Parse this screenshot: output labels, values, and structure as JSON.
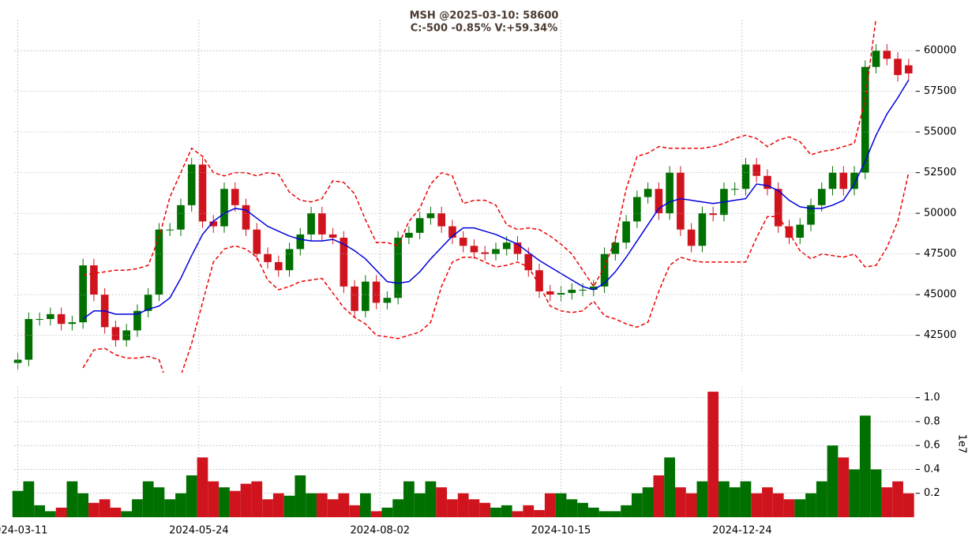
{
  "chart_data": {
    "type": "candlestick",
    "title": "MSH @2025-03-10: 58600",
    "subtitle": "C:-500 -0.85% V:+59.34%",
    "x": [
      0,
      3,
      6,
      9,
      12,
      15,
      18,
      21,
      24,
      27,
      30,
      33,
      36,
      39,
      42,
      45,
      48,
      51,
      54,
      57,
      60,
      63,
      66,
      69,
      72,
      75,
      78,
      81,
      84,
      87,
      90,
      93,
      96,
      99,
      102,
      105,
      108,
      111,
      114,
      117,
      120,
      123,
      126,
      129,
      132,
      135,
      138,
      141,
      144,
      147,
      150,
      153,
      156,
      159,
      162,
      165,
      168,
      171,
      174,
      177,
      180,
      183,
      186,
      189,
      192,
      195,
      198,
      201,
      204,
      207,
      210,
      213,
      216,
      219,
      222,
      225,
      228,
      231,
      234,
      237,
      240,
      243,
      246
    ],
    "open": [
      40800,
      41000,
      43500,
      43500,
      43800,
      43200,
      43300,
      46800,
      45000,
      43000,
      42200,
      42800,
      44000,
      45000,
      49000,
      49000,
      50500,
      53000,
      49500,
      49200,
      51500,
      50500,
      49000,
      47500,
      47000,
      46500,
      47800,
      48700,
      50000,
      48700,
      48500,
      45500,
      44000,
      45800,
      44500,
      44800,
      48500,
      48800,
      49700,
      50000,
      49200,
      48500,
      48000,
      47600,
      47500,
      47800,
      48200,
      47500,
      46500,
      45200,
      45000,
      45100,
      45300,
      45300,
      45500,
      47500,
      48200,
      49500,
      51000,
      51500,
      50000,
      52500,
      49000,
      48000,
      50000,
      49900,
      51500,
      51500,
      53000,
      52300,
      51500,
      49200,
      48500,
      49300,
      50500,
      51500,
      52500,
      51500,
      52500,
      59000,
      60000,
      59500,
      59100
    ],
    "high": [
      41400,
      43900,
      43900,
      44200,
      44200,
      43700,
      47200,
      47200,
      45400,
      43400,
      43200,
      44400,
      45400,
      49400,
      49400,
      50900,
      53400,
      53400,
      49900,
      51900,
      51900,
      50900,
      49400,
      47900,
      47400,
      48200,
      49100,
      50400,
      50400,
      49100,
      48900,
      45900,
      46200,
      46200,
      45200,
      48900,
      49200,
      50100,
      50400,
      50400,
      49600,
      48900,
      48400,
      48000,
      48200,
      48600,
      48600,
      47900,
      46900,
      45600,
      45500,
      45700,
      45700,
      45900,
      47900,
      48600,
      49900,
      51400,
      51900,
      51900,
      52900,
      52900,
      49400,
      50400,
      50400,
      51900,
      51900,
      53400,
      53400,
      52700,
      51900,
      49600,
      49700,
      50900,
      51900,
      52900,
      52900,
      52900,
      59400,
      60400,
      60400,
      59900,
      59500
    ],
    "low": [
      40400,
      40600,
      43100,
      43100,
      42800,
      42800,
      42900,
      44600,
      42600,
      41800,
      41800,
      42400,
      43600,
      44600,
      48600,
      48600,
      50100,
      49100,
      48800,
      48800,
      50100,
      48600,
      47100,
      46600,
      46100,
      46100,
      47400,
      48300,
      48300,
      48100,
      45100,
      43600,
      43600,
      44100,
      44100,
      44400,
      48100,
      48400,
      49300,
      48800,
      48100,
      47600,
      47200,
      47100,
      47100,
      47400,
      47100,
      46100,
      44800,
      44600,
      44600,
      44700,
      44900,
      44900,
      45100,
      47100,
      47800,
      49100,
      50600,
      49600,
      49600,
      48600,
      47600,
      47600,
      49500,
      49500,
      51100,
      51100,
      51900,
      51100,
      48800,
      48100,
      48100,
      48900,
      50100,
      51100,
      51100,
      51100,
      52100,
      58600,
      59100,
      58100,
      58200
    ],
    "close": [
      41000,
      43500,
      43500,
      43800,
      43200,
      43300,
      46800,
      45000,
      43000,
      42200,
      42800,
      44000,
      45000,
      49000,
      49000,
      50500,
      53000,
      49500,
      49200,
      51500,
      50500,
      49000,
      47500,
      47000,
      46500,
      47800,
      48700,
      50000,
      48700,
      48500,
      45500,
      44000,
      45800,
      44500,
      44800,
      48500,
      48800,
      49700,
      50000,
      49200,
      48500,
      48000,
      47600,
      47500,
      47800,
      48200,
      47500,
      46500,
      45200,
      45000,
      45100,
      45300,
      45300,
      45500,
      47500,
      48200,
      49500,
      51000,
      51500,
      50000,
      52500,
      49000,
      48000,
      50000,
      49900,
      51500,
      51500,
      53000,
      52300,
      51500,
      49200,
      48500,
      49300,
      50500,
      51500,
      52500,
      51500,
      52500,
      59000,
      60000,
      59500,
      58500,
      58600
    ],
    "up_color": "#007000",
    "down_color": "#d0141e",
    "ma": {
      "color": "#0000dd",
      "values": [
        null,
        null,
        null,
        null,
        null,
        null,
        43500,
        44000,
        44000,
        43800,
        43800,
        43800,
        44100,
        44300,
        44800,
        46000,
        47400,
        48700,
        49500,
        50000,
        50300,
        50200,
        49700,
        49200,
        48900,
        48600,
        48400,
        48300,
        48300,
        48400,
        48100,
        47700,
        47200,
        46500,
        45800,
        45700,
        45800,
        46400,
        47200,
        47900,
        48600,
        49100,
        49100,
        48900,
        48700,
        48400,
        48100,
        47600,
        47100,
        46700,
        46300,
        45900,
        45500,
        45300,
        45700,
        46400,
        47300,
        48300,
        49300,
        50300,
        50700,
        50900,
        50800,
        50700,
        50600,
        50700,
        50800,
        50900,
        51800,
        51700,
        51400,
        50800,
        50400,
        50300,
        50300,
        50500,
        50800,
        51800,
        53200,
        54800,
        56100,
        57100,
        58200
      ]
    },
    "upper": {
      "color": "#ee0000",
      "values": [
        null,
        null,
        null,
        null,
        null,
        null,
        46200,
        46300,
        46400,
        46500,
        46500,
        46600,
        46800,
        48500,
        51000,
        52500,
        54000,
        53500,
        52500,
        52300,
        52500,
        52500,
        52300,
        52500,
        52400,
        51300,
        50800,
        50700,
        50900,
        52000,
        51900,
        51200,
        49600,
        48200,
        48200,
        48000,
        49500,
        50300,
        51800,
        52500,
        52300,
        50600,
        50800,
        50800,
        50500,
        49300,
        49000,
        49100,
        49000,
        48600,
        48100,
        47500,
        46500,
        45500,
        46700,
        48400,
        51500,
        53500,
        53700,
        54100,
        54000,
        54000,
        54000,
        54000,
        54100,
        54300,
        54600,
        54800,
        54600,
        54100,
        54500,
        54700,
        54400,
        53600,
        53800,
        53900,
        54100,
        54300,
        57000,
        62000,
        63000,
        63500,
        63000
      ]
    },
    "lower": {
      "color": "#ee0000",
      "values": [
        null,
        null,
        null,
        null,
        null,
        null,
        40500,
        41600,
        41700,
        41300,
        41100,
        41100,
        41200,
        41000,
        39000,
        40000,
        42000,
        44500,
        47000,
        47800,
        48000,
        47800,
        47300,
        45900,
        45300,
        45500,
        45800,
        45900,
        46000,
        45100,
        44200,
        43600,
        43200,
        42500,
        42400,
        42300,
        42500,
        42700,
        43300,
        45500,
        47000,
        47300,
        47300,
        47000,
        46700,
        46800,
        47000,
        46700,
        45600,
        44300,
        44000,
        43900,
        44000,
        44600,
        43700,
        43500,
        43200,
        43000,
        43300,
        45200,
        46800,
        47300,
        47100,
        47000,
        47000,
        47000,
        47000,
        47000,
        48500,
        49800,
        49800,
        48800,
        47700,
        47200,
        47500,
        47400,
        47300,
        47500,
        46700,
        46800,
        47900,
        49500,
        52500
      ]
    },
    "xlim": [
      -1,
      248
    ],
    "xticks": [
      {
        "value": 0,
        "label": "2024-03-11"
      },
      {
        "value": 50,
        "label": "2024-05-24"
      },
      {
        "value": 100,
        "label": "2024-08-02"
      },
      {
        "value": 150,
        "label": "2024-10-15"
      },
      {
        "value": 200,
        "label": "2024-12-24"
      }
    ],
    "ylim": [
      40200,
      61900
    ],
    "yticks": [
      42500,
      45000,
      47500,
      50000,
      52500,
      55000,
      57500,
      60000
    ],
    "grid": true,
    "volume": {
      "label": "1e7",
      "ylim": [
        0,
        1.09
      ],
      "yticks": [
        0.2,
        0.4,
        0.6,
        0.8,
        {
          "value": 1.0,
          "label": "1.0"
        }
      ],
      "values": [
        0.22,
        0.3,
        0.1,
        0.05,
        0.08,
        0.3,
        0.2,
        0.12,
        0.15,
        0.08,
        0.05,
        0.15,
        0.3,
        0.25,
        0.15,
        0.2,
        0.35,
        0.5,
        0.3,
        0.25,
        0.22,
        0.28,
        0.3,
        0.15,
        0.2,
        0.18,
        0.35,
        0.2,
        0.2,
        0.15,
        0.2,
        0.1,
        0.2,
        0.05,
        0.08,
        0.15,
        0.3,
        0.2,
        0.3,
        0.25,
        0.15,
        0.2,
        0.15,
        0.12,
        0.08,
        0.1,
        0.05,
        0.1,
        0.06,
        0.2,
        0.2,
        0.15,
        0.12,
        0.08,
        0.05,
        0.05,
        0.1,
        0.2,
        0.25,
        0.35,
        0.5,
        0.25,
        0.2,
        0.3,
        1.05,
        0.3,
        0.25,
        0.3,
        0.2,
        0.25,
        0.2,
        0.15,
        0.15,
        0.2,
        0.3,
        0.6,
        0.5,
        0.4,
        0.85,
        0.4,
        0.25,
        0.3,
        0.2
      ]
    }
  }
}
